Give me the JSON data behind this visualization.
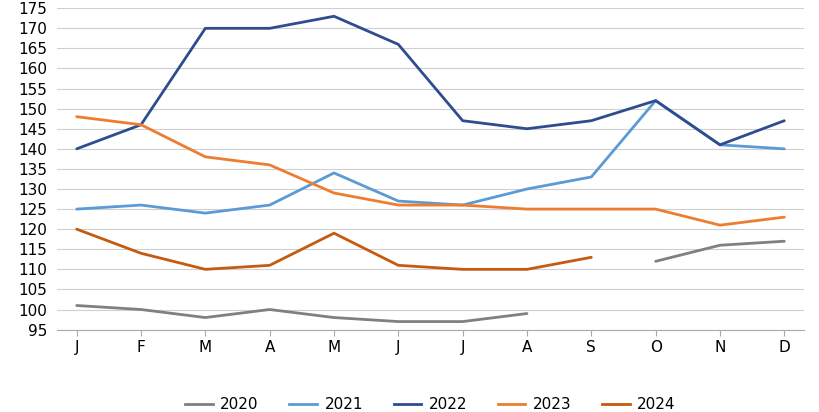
{
  "months": [
    "J",
    "F",
    "M",
    "A",
    "M",
    "J",
    "J",
    "A",
    "S",
    "O",
    "N",
    "D"
  ],
  "series": {
    "2020": [
      101,
      100,
      98,
      100,
      98,
      97,
      97,
      99,
      null,
      112,
      116,
      117
    ],
    "2021": [
      125,
      126,
      124,
      126,
      134,
      127,
      126,
      130,
      133,
      152,
      141,
      140
    ],
    "2022": [
      140,
      146,
      170,
      170,
      173,
      166,
      147,
      145,
      147,
      152,
      141,
      147
    ],
    "2023": [
      148,
      146,
      138,
      136,
      129,
      126,
      126,
      125,
      125,
      125,
      121,
      123
    ],
    "2024": [
      120,
      114,
      110,
      111,
      119,
      111,
      110,
      110,
      113,
      null,
      null,
      null
    ]
  },
  "colors": {
    "2020": "#808080",
    "2021": "#5B9BD5",
    "2022": "#2E4D8F",
    "2023": "#ED7D31",
    "2024": "#C55A11"
  },
  "ylim": [
    95,
    175
  ],
  "yticks": [
    95,
    100,
    105,
    110,
    115,
    120,
    125,
    130,
    135,
    140,
    145,
    150,
    155,
    160,
    165,
    170,
    175
  ],
  "legend_labels": [
    "2020",
    "2021",
    "2022",
    "2023",
    "2024"
  ],
  "line_width": 2.0,
  "background_color": "#ffffff",
  "grid_color": "#d0d0d0",
  "tick_fontsize": 11,
  "legend_fontsize": 11
}
